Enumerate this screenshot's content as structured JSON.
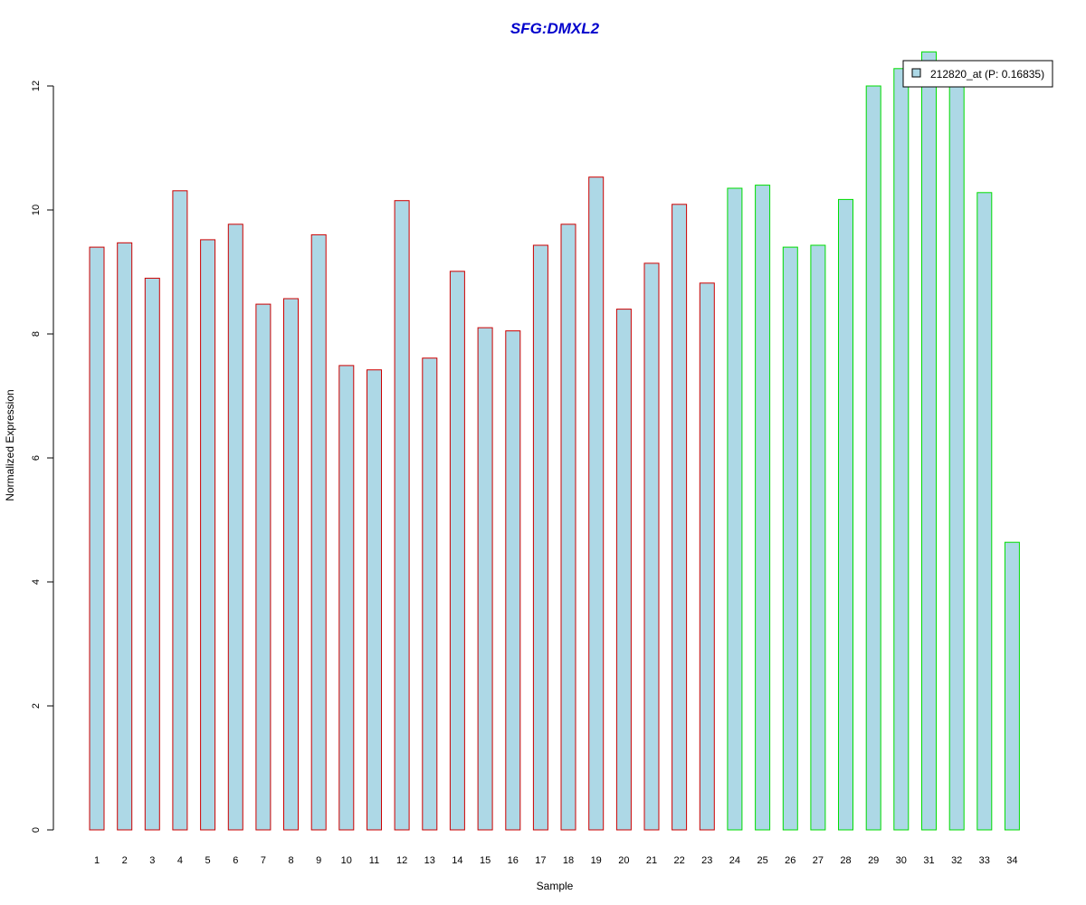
{
  "chart_data": {
    "type": "bar",
    "title": "SFG:DMXL2",
    "xlabel": "Sample",
    "ylabel": "Normalized Expression",
    "ylim": [
      0,
      12
    ],
    "yticks": [
      0,
      2,
      4,
      6,
      8,
      10,
      12
    ],
    "categories": [
      "1",
      "2",
      "3",
      "4",
      "5",
      "6",
      "7",
      "8",
      "9",
      "10",
      "11",
      "12",
      "13",
      "14",
      "15",
      "16",
      "17",
      "18",
      "19",
      "20",
      "21",
      "22",
      "23",
      "24",
      "25",
      "26",
      "27",
      "28",
      "29",
      "30",
      "31",
      "32",
      "33",
      "34"
    ],
    "values": [
      9.4,
      9.47,
      8.9,
      10.31,
      9.52,
      9.77,
      8.48,
      8.57,
      9.6,
      7.49,
      7.42,
      10.15,
      7.61,
      9.01,
      8.1,
      8.05,
      9.43,
      9.77,
      10.53,
      8.4,
      9.14,
      10.09,
      8.82,
      10.35,
      10.4,
      9.4,
      9.43,
      10.17,
      12.0,
      12.28,
      12.55,
      12.05,
      10.28,
      4.64
    ],
    "group_border_colors": [
      "#cc0000",
      "#cc0000",
      "#cc0000",
      "#cc0000",
      "#cc0000",
      "#cc0000",
      "#cc0000",
      "#cc0000",
      "#cc0000",
      "#cc0000",
      "#cc0000",
      "#cc0000",
      "#cc0000",
      "#cc0000",
      "#cc0000",
      "#cc0000",
      "#cc0000",
      "#cc0000",
      "#cc0000",
      "#cc0000",
      "#cc0000",
      "#cc0000",
      "#cc0000",
      "#00dd00",
      "#00dd00",
      "#00dd00",
      "#00dd00",
      "#00dd00",
      "#00dd00",
      "#00dd00",
      "#00dd00",
      "#00dd00",
      "#00dd00",
      "#00dd00"
    ],
    "legend": {
      "label": "212820_at (P: 0.16835)",
      "position": "top-right"
    },
    "grid": false,
    "colors": {
      "fill": "#add8e6",
      "title": "#0000cc",
      "axis": "#000000"
    }
  }
}
